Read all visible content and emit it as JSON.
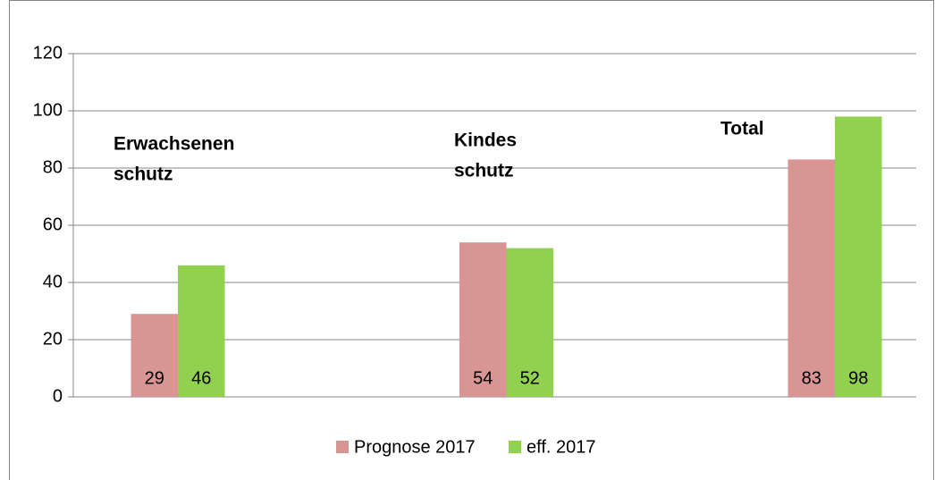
{
  "chart_data": {
    "type": "bar",
    "categories": [
      [
        "Erwachsenen",
        "schutz"
      ],
      [
        "Kindes",
        "schutz"
      ],
      [
        "Total"
      ]
    ],
    "series": [
      {
        "name": "Prognose 2017",
        "color": "#d99594",
        "values": [
          29,
          54,
          83
        ]
      },
      {
        "name": "eff. 2017",
        "color": "#92d050",
        "values": [
          46,
          52,
          98
        ]
      }
    ],
    "ylim": [
      0,
      120
    ],
    "yticks": [
      0,
      20,
      40,
      60,
      80,
      100,
      120
    ],
    "grid": true,
    "legend": "bottom"
  }
}
